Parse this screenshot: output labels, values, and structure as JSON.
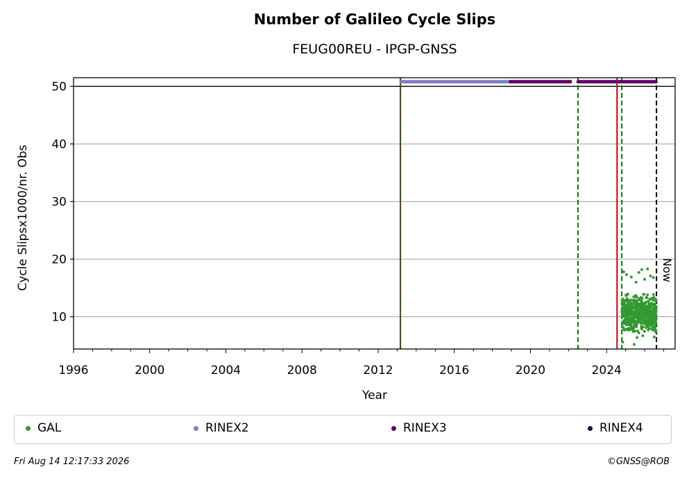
{
  "chart_data": {
    "type": "scatter",
    "title": "Number of Galileo Cycle Slips",
    "subtitle": "FEUG00REU - IPGP-GNSS",
    "xlabel": "Year",
    "ylabel": "Cycle Slipsx1000/nr. Obs",
    "xlim": [
      1996,
      2027.6
    ],
    "ylim": [
      4.4,
      51.5
    ],
    "xticks": [
      1996,
      2000,
      2004,
      2008,
      2012,
      2016,
      2020,
      2024
    ],
    "yticks": [
      10,
      20,
      30,
      40,
      50
    ],
    "grid": "horizontal",
    "now_label": "Now",
    "now_x": 2026.62,
    "top_line_y": 50,
    "vertical_lines": [
      {
        "x": 2013.17,
        "color": "#cc0000",
        "style": "solid"
      },
      {
        "x": 2013.17,
        "color": "#007700",
        "style": "dashed"
      },
      {
        "x": 2022.5,
        "color": "#007700",
        "style": "dashed"
      },
      {
        "x": 2024.55,
        "color": "#cc0000",
        "style": "solid"
      },
      {
        "x": 2024.8,
        "color": "#007700",
        "style": "dashed"
      }
    ],
    "rinex_segments": [
      {
        "name": "RINEX2",
        "color": "#8080c0",
        "x": [
          2013.2,
          2018.95
        ],
        "y": 50.8
      },
      {
        "name": "RINEX3",
        "color": "#660066",
        "x": [
          2018.95,
          2022.1
        ],
        "y": 50.8
      },
      {
        "name": "RINEX3",
        "color": "#660066",
        "x": [
          2022.5,
          2026.6
        ],
        "y": 50.8
      }
    ],
    "series": [
      {
        "name": "GAL",
        "color": "#339933",
        "x_range": [
          2024.8,
          2026.62
        ],
        "typical_range": [
          7,
          14
        ],
        "values": [
          [
            2024.85,
            5.6
          ],
          [
            2024.9,
            17.8
          ],
          [
            2025.05,
            17.3
          ],
          [
            2025.3,
            16.9
          ],
          [
            2025.45,
            5.2
          ],
          [
            2025.55,
            16.0
          ],
          [
            2025.7,
            17.7
          ],
          [
            2025.85,
            18.2
          ],
          [
            2026.0,
            16.5
          ],
          [
            2026.15,
            18.3
          ],
          [
            2026.3,
            17.1
          ],
          [
            2026.45,
            16.8
          ],
          [
            2025.6,
            6.4
          ],
          [
            2025.9,
            6.7
          ],
          [
            2026.5,
            6.5
          ]
        ]
      }
    ],
    "legend": [
      {
        "name": "GAL",
        "color": "#339933"
      },
      {
        "name": "RINEX2",
        "color": "#8080c0"
      },
      {
        "name": "RINEX3",
        "color": "#660066"
      },
      {
        "name": "RINEX4",
        "color": "#1a0033"
      }
    ]
  },
  "footer": {
    "timestamp": "Fri Aug 14 12:17:33 2026",
    "credit": "©GNSS@ROB"
  }
}
